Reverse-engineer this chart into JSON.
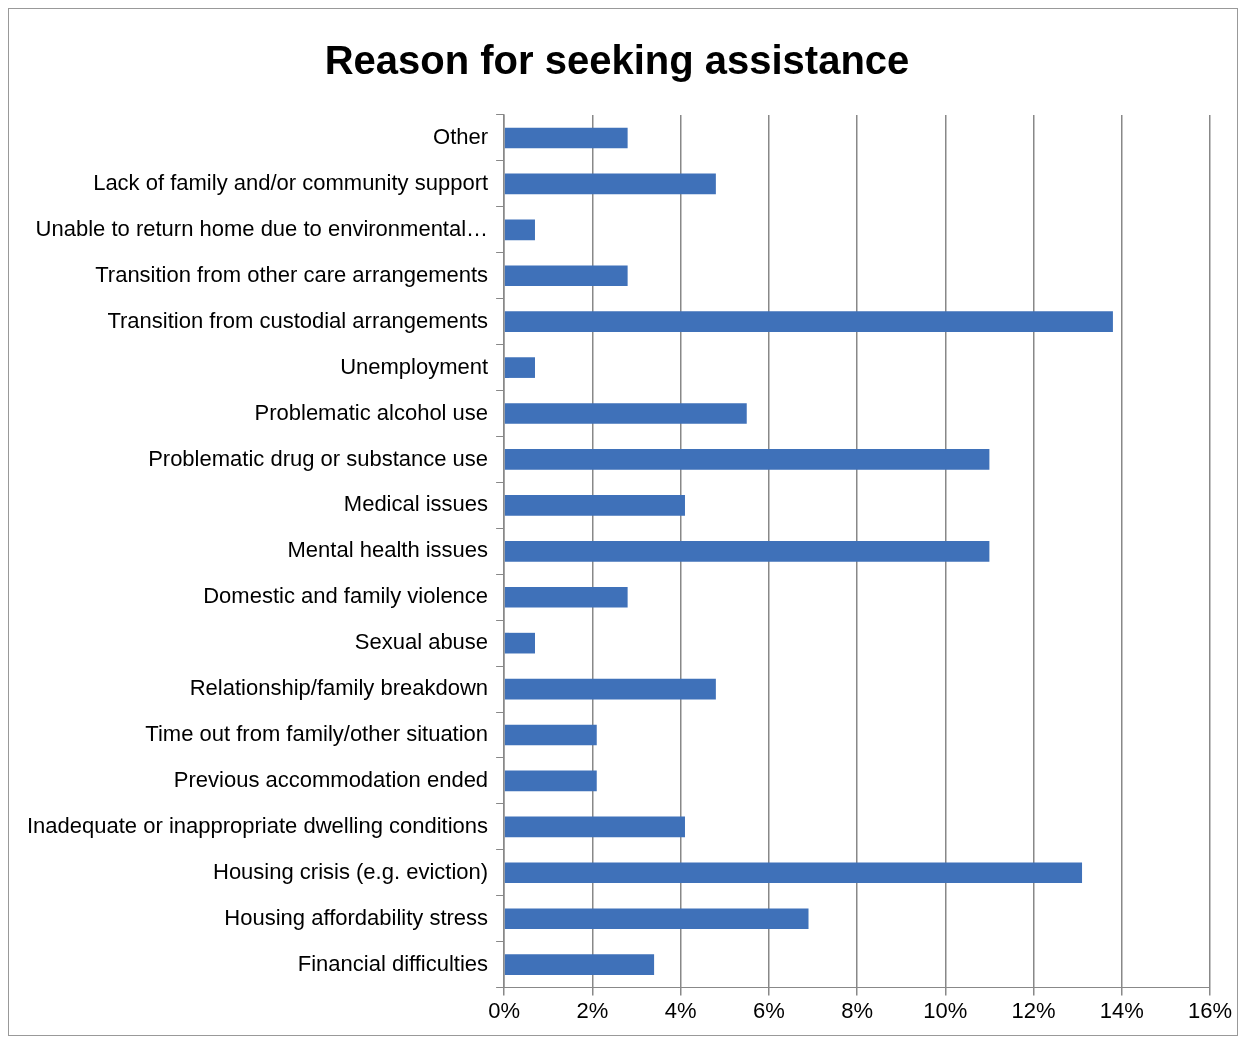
{
  "chart_data": {
    "type": "bar",
    "orientation": "horizontal",
    "title": "Reason for seeking assistance",
    "categories": [
      "Other",
      "Lack of family and/or community support",
      "Unable to return home due to environmental…",
      "Transition from other care arrangements",
      "Transition from custodial arrangements",
      "Unemployment",
      "Problematic alcohol use",
      "Problematic drug or substance use",
      "Medical issues",
      "Mental health issues",
      "Domestic and family violence",
      "Sexual abuse",
      "Relationship/family breakdown",
      "Time out from family/other situation",
      "Previous accommodation ended",
      "Inadequate or inappropriate dwelling conditions",
      "Housing crisis (e.g. eviction)",
      "Housing affordability stress",
      "Financial difficulties"
    ],
    "values": [
      2.8,
      4.8,
      0.7,
      2.8,
      13.8,
      0.7,
      5.5,
      11.0,
      4.1,
      11.0,
      2.8,
      0.7,
      4.8,
      2.1,
      2.1,
      4.1,
      13.1,
      6.9,
      3.4
    ],
    "color": "#3f71b9",
    "xlim": [
      0,
      16
    ],
    "xticks": [
      {
        "value": 0,
        "label": "0%"
      },
      {
        "value": 2,
        "label": "2%"
      },
      {
        "value": 4,
        "label": "4%"
      },
      {
        "value": 6,
        "label": "6%"
      },
      {
        "value": 8,
        "label": "8%"
      },
      {
        "value": 10,
        "label": "10%"
      },
      {
        "value": 12,
        "label": "12%"
      },
      {
        "value": 14,
        "label": "14%"
      },
      {
        "value": 16,
        "label": "16%"
      }
    ],
    "grid": "x",
    "legend": false
  }
}
